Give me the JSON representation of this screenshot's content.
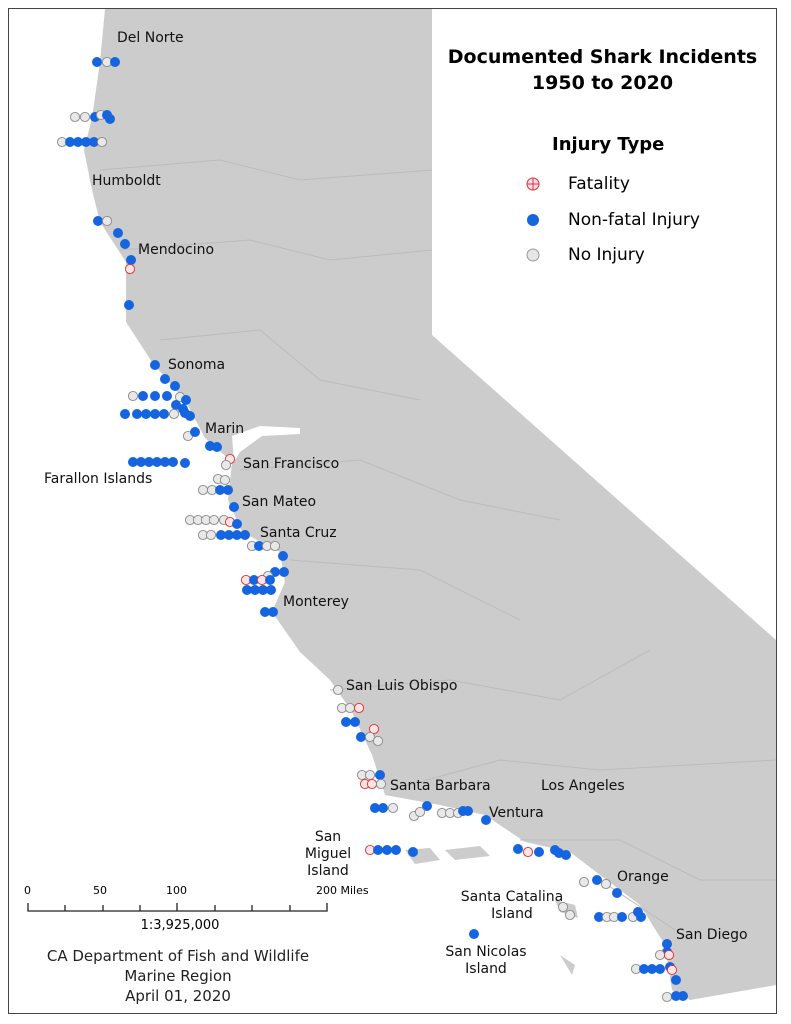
{
  "title": {
    "line1": "Documented Shark Incidents",
    "line2": "1950 to 2020"
  },
  "legend": {
    "title": "Injury Type",
    "items": [
      {
        "label": "Fatality",
        "color": "#e03030"
      },
      {
        "label": "Non-fatal Injury",
        "color": "#1565e0"
      },
      {
        "label": "No Injury",
        "color": "#bbbbbb"
      }
    ]
  },
  "place_labels": [
    "Del Norte",
    "Humboldt",
    "Mendocino",
    "Sonoma",
    "Marin",
    "San Francisco",
    "Farallon Islands",
    "San Mateo",
    "Santa Cruz",
    "Monterey",
    "San Luis Obispo",
    "Santa Barbara",
    "Los Angeles",
    "Ventura",
    "San Miguel Island",
    "Orange",
    "Santa Catalina Island",
    "San Nicolas Island",
    "San Diego"
  ],
  "scale": {
    "ticks": [
      "0",
      "50",
      "100",
      "200 Miles"
    ],
    "ratio": "1:3,925,000"
  },
  "credit": {
    "line1": "CA Department of Fish and Wildlife",
    "line2": "Marine Region",
    "line3": "April 01, 2020"
  },
  "colors": {
    "land": "#cccccc",
    "county_line": "#b8b8b8",
    "fatal": "#e03030",
    "nonfatal": "#1565e0",
    "noinjury": "#bbbbbb"
  }
}
